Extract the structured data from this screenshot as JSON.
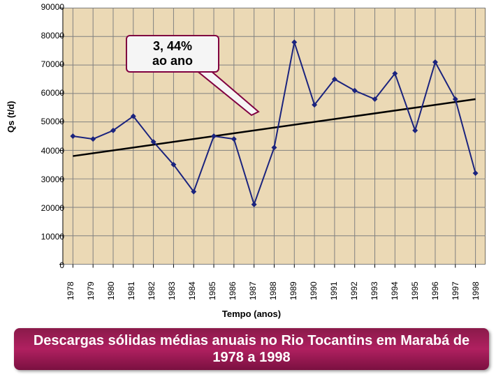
{
  "chart": {
    "type": "line",
    "ylabel": "Qs (t/d)",
    "xlabel": "Tempo (anos)",
    "y_ticks": [
      0,
      10000,
      20000,
      30000,
      40000,
      50000,
      60000,
      70000,
      80000,
      90000
    ],
    "ylim": [
      0,
      90000
    ],
    "x_categories": [
      "1978",
      "1979",
      "1980",
      "1981",
      "1982",
      "1983",
      "1984",
      "1985",
      "1986",
      "1987",
      "1988",
      "1989",
      "1990",
      "1991",
      "1992",
      "1993",
      "1994",
      "1995",
      "1996",
      "1997",
      "1998"
    ],
    "values": [
      45000,
      44000,
      47000,
      52000,
      43000,
      35000,
      25500,
      45000,
      44000,
      21000,
      41000,
      78000,
      56000,
      65000,
      61000,
      58000,
      67000,
      47000,
      71000,
      58000,
      32000
    ],
    "trend_start": 38000,
    "trend_end": 58000,
    "plot_bg": "#ebd9b5",
    "grid_color": "#808080",
    "line_color": "#1a237e",
    "line_width": 2,
    "marker_color": "#1a237e",
    "marker_size": 4,
    "trend_color": "#000000",
    "trend_width": 2.5,
    "tick_font_size": 12,
    "label_font_size": 13
  },
  "callout": {
    "line1": "3, 44%",
    "line2": "ao ano",
    "border_color": "#800040",
    "bg_color": "#f5f5f5"
  },
  "caption": {
    "text": "Descargas sólidas médias anuais no Rio Tocantins em Marabá de 1978 a 1998",
    "bg_color": "#8a1a4a",
    "text_color": "#ffffff",
    "font_size": 20
  }
}
